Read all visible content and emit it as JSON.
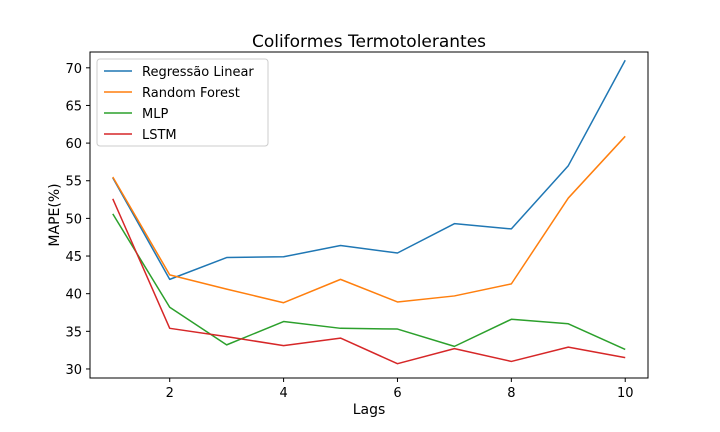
{
  "chart_data": {
    "type": "line",
    "title": "Coliformes Termotolerantes",
    "xlabel": "Lags",
    "ylabel": "MAPE(%)",
    "x": [
      1,
      2,
      3,
      4,
      5,
      6,
      7,
      8,
      9,
      10
    ],
    "xlim": [
      0.6,
      10.4
    ],
    "ylim": [
      28.8,
      72.1
    ],
    "xticks": [
      2,
      4,
      6,
      8,
      10
    ],
    "yticks": [
      30,
      35,
      40,
      45,
      50,
      55,
      60,
      65,
      70
    ],
    "grid": false,
    "legend": "top-left",
    "series": [
      {
        "name": "Regressão Linear",
        "color": "#1f77b4",
        "values": [
          55.4,
          41.9,
          44.8,
          44.9,
          46.4,
          45.4,
          49.3,
          48.6,
          57.0,
          71.0
        ]
      },
      {
        "name": "Random Forest",
        "color": "#ff7f0e",
        "values": [
          55.5,
          42.5,
          40.6,
          38.8,
          41.9,
          38.9,
          39.7,
          41.3,
          52.7,
          60.9
        ]
      },
      {
        "name": "MLP",
        "color": "#2ca02c",
        "values": [
          50.6,
          38.2,
          33.2,
          36.3,
          35.4,
          35.3,
          33.0,
          36.6,
          36.0,
          32.6
        ]
      },
      {
        "name": "LSTM",
        "color": "#d62728",
        "values": [
          52.6,
          35.4,
          34.3,
          33.1,
          34.1,
          30.7,
          32.7,
          31.0,
          32.9,
          31.5
        ]
      }
    ]
  }
}
